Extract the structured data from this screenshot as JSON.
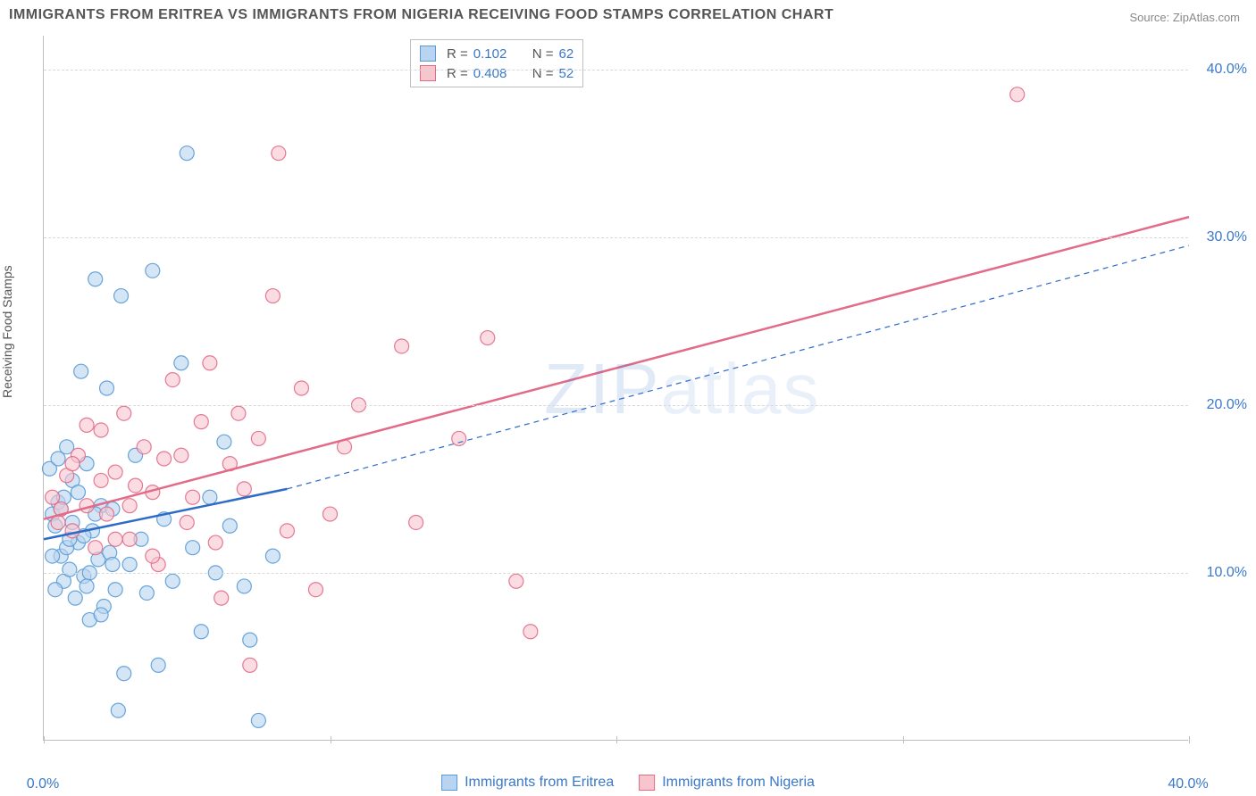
{
  "title": "IMMIGRANTS FROM ERITREA VS IMMIGRANTS FROM NIGERIA RECEIVING FOOD STAMPS CORRELATION CHART",
  "source_label": "Source: ZipAtlas.com",
  "ylabel": "Receiving Food Stamps",
  "watermark": "ZIPatlas",
  "chart": {
    "type": "scatter",
    "background_color": "#ffffff",
    "grid_color": "#d9d9d9",
    "axis_color": "#bfbfbf",
    "xlim": [
      0,
      40
    ],
    "ylim": [
      0,
      42
    ],
    "x_ticks": [
      0,
      10,
      20,
      30,
      40
    ],
    "x_tick_labels": [
      "0.0%",
      "",
      "",
      "",
      "40.0%"
    ],
    "y_ticks": [
      10,
      20,
      30,
      40
    ],
    "y_tick_labels": [
      "10.0%",
      "20.0%",
      "30.0%",
      "40.0%"
    ],
    "tick_label_color": "#3a78c9",
    "tick_fontsize": 16,
    "marker_radius": 8,
    "marker_opacity": 0.6,
    "marker_stroke_width": 1.2
  },
  "series": [
    {
      "name": "Immigrants from Eritrea",
      "color_fill": "#b8d4f0",
      "color_stroke": "#5a9bd5",
      "R": "0.102",
      "N": "62",
      "trend": {
        "x1": 0,
        "y1": 12.0,
        "x2": 8.5,
        "y2": 15.0,
        "dash_x2": 40,
        "dash_y2": 29.5,
        "width": 2.5
      },
      "points": [
        [
          0.2,
          16.2
        ],
        [
          0.3,
          13.5
        ],
        [
          0.4,
          12.8
        ],
        [
          0.5,
          14.2
        ],
        [
          0.6,
          11.0
        ],
        [
          0.7,
          9.5
        ],
        [
          0.8,
          17.5
        ],
        [
          0.9,
          10.2
        ],
        [
          1.0,
          13.0
        ],
        [
          1.1,
          8.5
        ],
        [
          1.2,
          11.8
        ],
        [
          1.3,
          22.0
        ],
        [
          1.4,
          9.8
        ],
        [
          1.5,
          16.5
        ],
        [
          1.6,
          7.2
        ],
        [
          1.7,
          12.5
        ],
        [
          1.8,
          27.5
        ],
        [
          1.9,
          10.8
        ],
        [
          2.0,
          14.0
        ],
        [
          2.1,
          8.0
        ],
        [
          2.2,
          21.0
        ],
        [
          2.3,
          11.2
        ],
        [
          2.4,
          13.8
        ],
        [
          2.5,
          9.0
        ],
        [
          2.7,
          26.5
        ],
        [
          2.8,
          4.0
        ],
        [
          3.0,
          10.5
        ],
        [
          3.2,
          17.0
        ],
        [
          3.4,
          12.0
        ],
        [
          3.6,
          8.8
        ],
        [
          3.8,
          28.0
        ],
        [
          4.0,
          4.5
        ],
        [
          4.2,
          13.2
        ],
        [
          4.5,
          9.5
        ],
        [
          4.8,
          22.5
        ],
        [
          5.0,
          35.0
        ],
        [
          5.2,
          11.5
        ],
        [
          5.5,
          6.5
        ],
        [
          5.8,
          14.5
        ],
        [
          6.0,
          10.0
        ],
        [
          6.3,
          17.8
        ],
        [
          6.5,
          12.8
        ],
        [
          7.0,
          9.2
        ],
        [
          7.2,
          6.0
        ],
        [
          7.5,
          1.2
        ],
        [
          8.0,
          11.0
        ],
        [
          2.6,
          1.8
        ],
        [
          0.4,
          9.0
        ],
        [
          1.0,
          15.5
        ],
        [
          0.6,
          13.8
        ],
        [
          1.4,
          12.2
        ],
        [
          0.8,
          11.5
        ],
        [
          1.6,
          10.0
        ],
        [
          0.5,
          16.8
        ],
        [
          2.0,
          7.5
        ],
        [
          1.2,
          14.8
        ],
        [
          0.9,
          12.0
        ],
        [
          1.8,
          13.5
        ],
        [
          0.3,
          11.0
        ],
        [
          2.4,
          10.5
        ],
        [
          1.5,
          9.2
        ],
        [
          0.7,
          14.5
        ]
      ]
    },
    {
      "name": "Immigrants from Nigeria",
      "color_fill": "#f7c5ce",
      "color_stroke": "#e26b87",
      "R": "0.408",
      "N": "52",
      "trend": {
        "x1": 0,
        "y1": 13.2,
        "x2": 40,
        "y2": 31.2,
        "width": 2.5
      },
      "points": [
        [
          0.3,
          14.5
        ],
        [
          0.5,
          13.0
        ],
        [
          0.8,
          15.8
        ],
        [
          1.0,
          12.5
        ],
        [
          1.2,
          17.0
        ],
        [
          1.5,
          14.0
        ],
        [
          1.8,
          11.5
        ],
        [
          2.0,
          18.5
        ],
        [
          2.2,
          13.5
        ],
        [
          2.5,
          16.0
        ],
        [
          2.8,
          19.5
        ],
        [
          3.0,
          12.0
        ],
        [
          3.2,
          15.2
        ],
        [
          3.5,
          17.5
        ],
        [
          3.8,
          14.8
        ],
        [
          4.0,
          10.5
        ],
        [
          4.5,
          21.5
        ],
        [
          5.0,
          13.0
        ],
        [
          5.5,
          19.0
        ],
        [
          5.8,
          22.5
        ],
        [
          6.0,
          11.8
        ],
        [
          6.5,
          16.5
        ],
        [
          7.0,
          15.0
        ],
        [
          7.2,
          4.5
        ],
        [
          7.5,
          18.0
        ],
        [
          8.0,
          26.5
        ],
        [
          8.2,
          35.0
        ],
        [
          8.5,
          12.5
        ],
        [
          9.0,
          21.0
        ],
        [
          9.5,
          9.0
        ],
        [
          6.2,
          8.5
        ],
        [
          10.0,
          13.5
        ],
        [
          10.5,
          17.5
        ],
        [
          11.0,
          20.0
        ],
        [
          12.5,
          23.5
        ],
        [
          13.0,
          13.0
        ],
        [
          14.5,
          18.0
        ],
        [
          15.5,
          24.0
        ],
        [
          16.5,
          9.5
        ],
        [
          17.0,
          6.5
        ],
        [
          34.0,
          38.5
        ],
        [
          1.0,
          16.5
        ],
        [
          1.5,
          18.8
        ],
        [
          2.0,
          15.5
        ],
        [
          0.6,
          13.8
        ],
        [
          3.0,
          14.0
        ],
        [
          4.2,
          16.8
        ],
        [
          5.2,
          14.5
        ],
        [
          6.8,
          19.5
        ],
        [
          2.5,
          12.0
        ],
        [
          3.8,
          11.0
        ],
        [
          4.8,
          17.0
        ]
      ]
    }
  ],
  "legend_top": {
    "R_label": "R =",
    "N_label": "N ="
  },
  "legend_bottom_labels": [
    "Immigrants from Eritrea",
    "Immigrants from Nigeria"
  ]
}
